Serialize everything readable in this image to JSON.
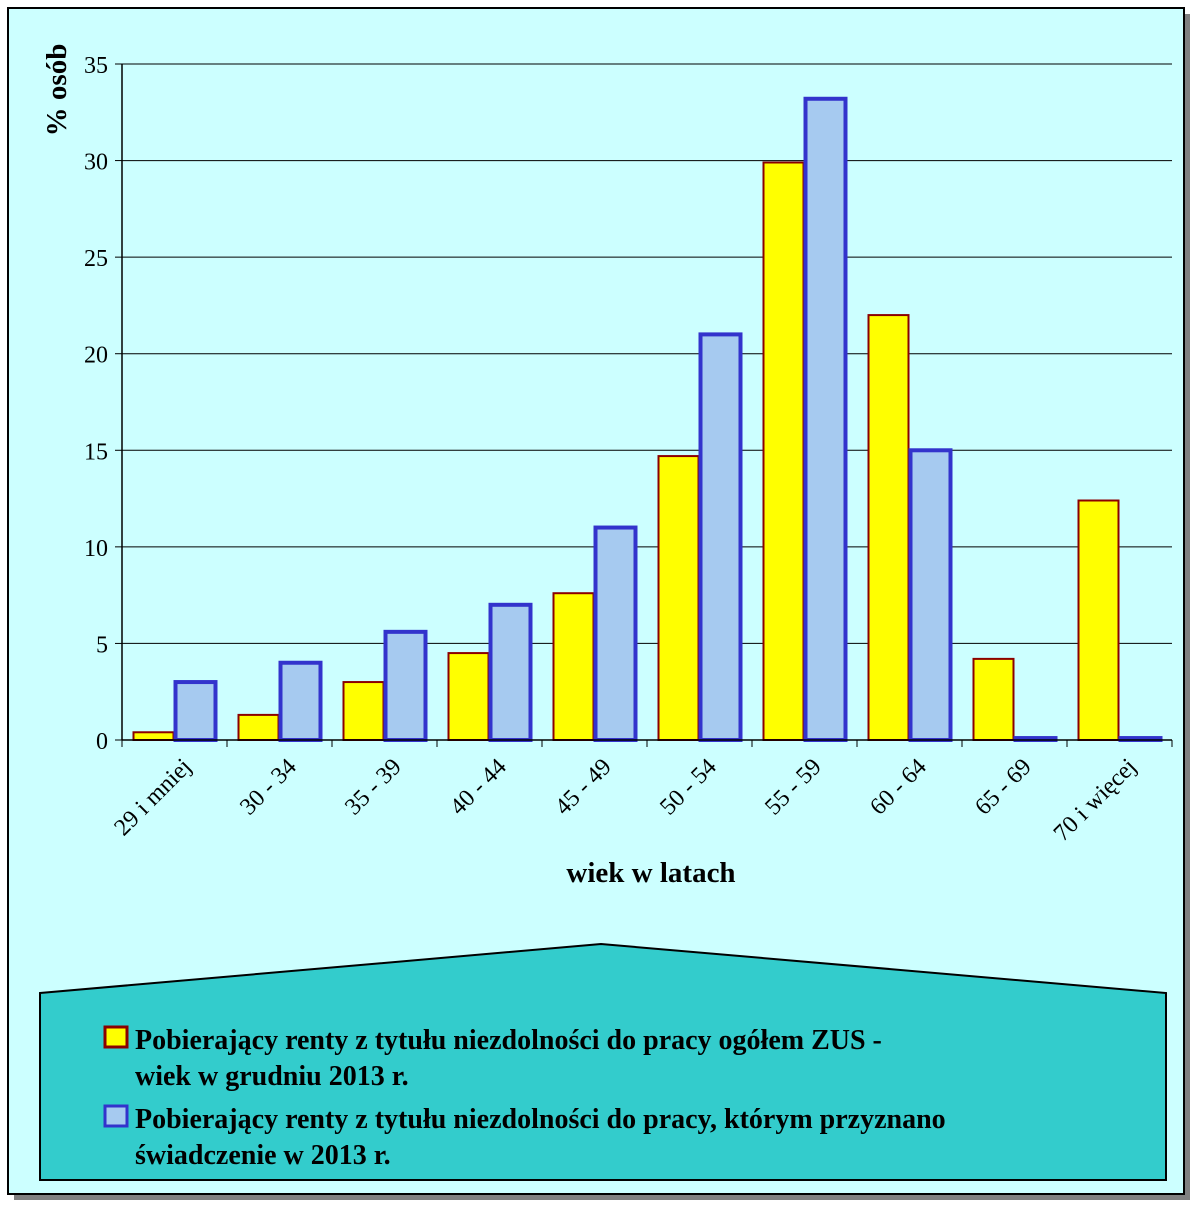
{
  "chart_data": {
    "type": "bar",
    "title": "",
    "xlabel": "wiek w latach",
    "ylabel": "% osób",
    "ylim": [
      0,
      35
    ],
    "yticks": [
      0,
      5,
      10,
      15,
      20,
      25,
      30,
      35
    ],
    "grid": true,
    "legend_position": "bottom",
    "categories": [
      "29 i mniej",
      "30 - 34",
      "35 - 39",
      "40 - 44",
      "45 - 49",
      "50 - 54",
      "55 - 59",
      "60 - 64",
      "65 - 69",
      "70 i więcej"
    ],
    "series": [
      {
        "name": "Pobierający renty z tytułu niezdolności do pracy ogółem ZUS - wiek w grudniu 2013 r.",
        "legend_lines": [
          "Pobierający renty z tytułu niezdolności do pracy ogółem ZUS -",
          "wiek w grudniu 2013 r."
        ],
        "fill": "#ffff00",
        "stroke": "#8b0000",
        "values": [
          0.4,
          1.3,
          3.0,
          4.5,
          7.6,
          14.7,
          29.9,
          22.0,
          4.2,
          12.4
        ]
      },
      {
        "name": "Pobierający renty z tytułu niezdolności do pracy, którym przyznano świadczenie w 2013 r.",
        "legend_lines": [
          "Pobierający renty z tytułu niezdolności do pracy, którym przyznano",
          "świadczenie w 2013 r."
        ],
        "fill": "#a6caf0",
        "stroke": "#3333cc",
        "values": [
          3.0,
          4.0,
          5.6,
          7.0,
          11.0,
          21.0,
          33.2,
          15.0,
          0.1,
          0.1
        ]
      }
    ]
  },
  "colors": {
    "chart_background": "#ccffff",
    "legend_background": "#33cccc",
    "gridline": "#000000"
  }
}
